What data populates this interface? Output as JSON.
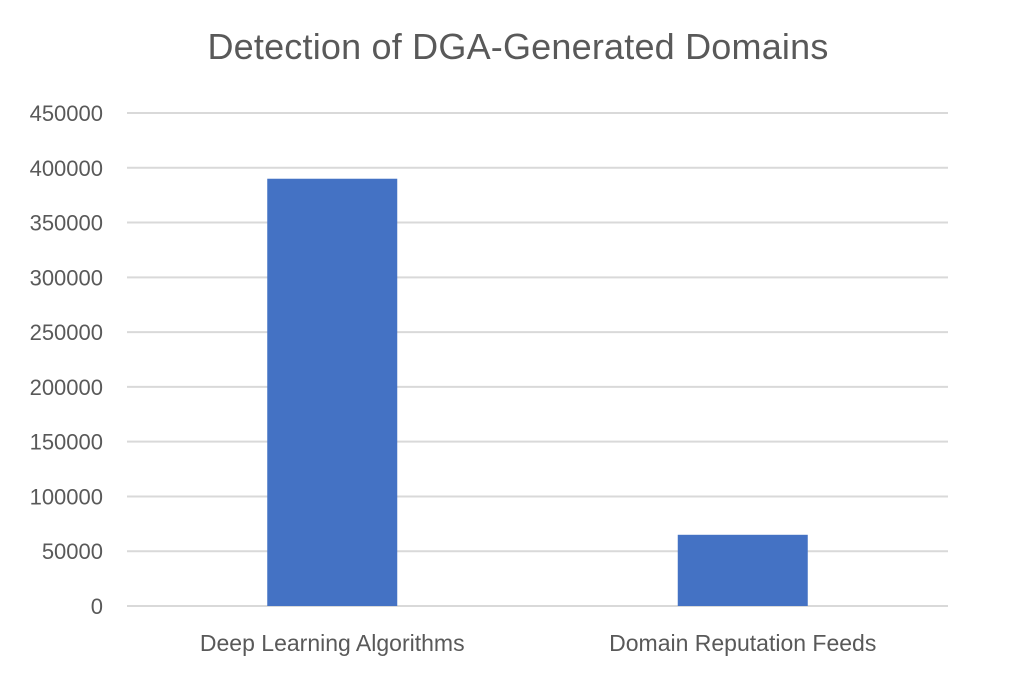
{
  "chart_data": {
    "type": "bar",
    "title": "Detection of DGA-Generated Domains",
    "xlabel": "",
    "ylabel": "",
    "categories": [
      "Deep Learning Algorithms",
      "Domain Reputation Feeds"
    ],
    "values": [
      390000,
      65000
    ],
    "ylim": [
      0,
      450000
    ],
    "yticks": [
      "0",
      "50000",
      "100000",
      "150000",
      "200000",
      "250000",
      "300000",
      "350000",
      "400000",
      "450000"
    ],
    "grid": true,
    "legend": "none",
    "colors": {
      "bar": "#4472C4",
      "grid": "#D9D9D9",
      "text": "#595959"
    }
  }
}
